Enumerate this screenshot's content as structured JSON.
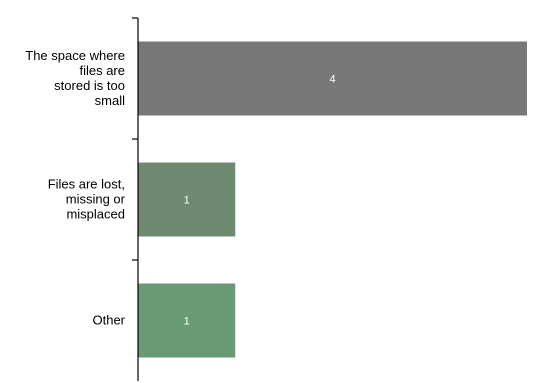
{
  "chart_data": {
    "type": "bar",
    "orientation": "horizontal",
    "categories": [
      "The space where files are stored is too small",
      "Files are lost, missing or misplaced",
      "Other"
    ],
    "category_label_lines": [
      [
        "The space where",
        "files are",
        "stored is too",
        "small"
      ],
      [
        "Files are lost,",
        "missing or",
        "misplaced"
      ],
      [
        "Other"
      ]
    ],
    "values": [
      4,
      1,
      1
    ],
    "data_labels": [
      "4",
      "1",
      "1"
    ],
    "bar_colors": [
      "#787878",
      "#6e8b72",
      "#6a9a74"
    ],
    "xlim": [
      0,
      4
    ],
    "title": "",
    "xlabel": "",
    "ylabel": "",
    "grid": false,
    "legend": "none"
  }
}
